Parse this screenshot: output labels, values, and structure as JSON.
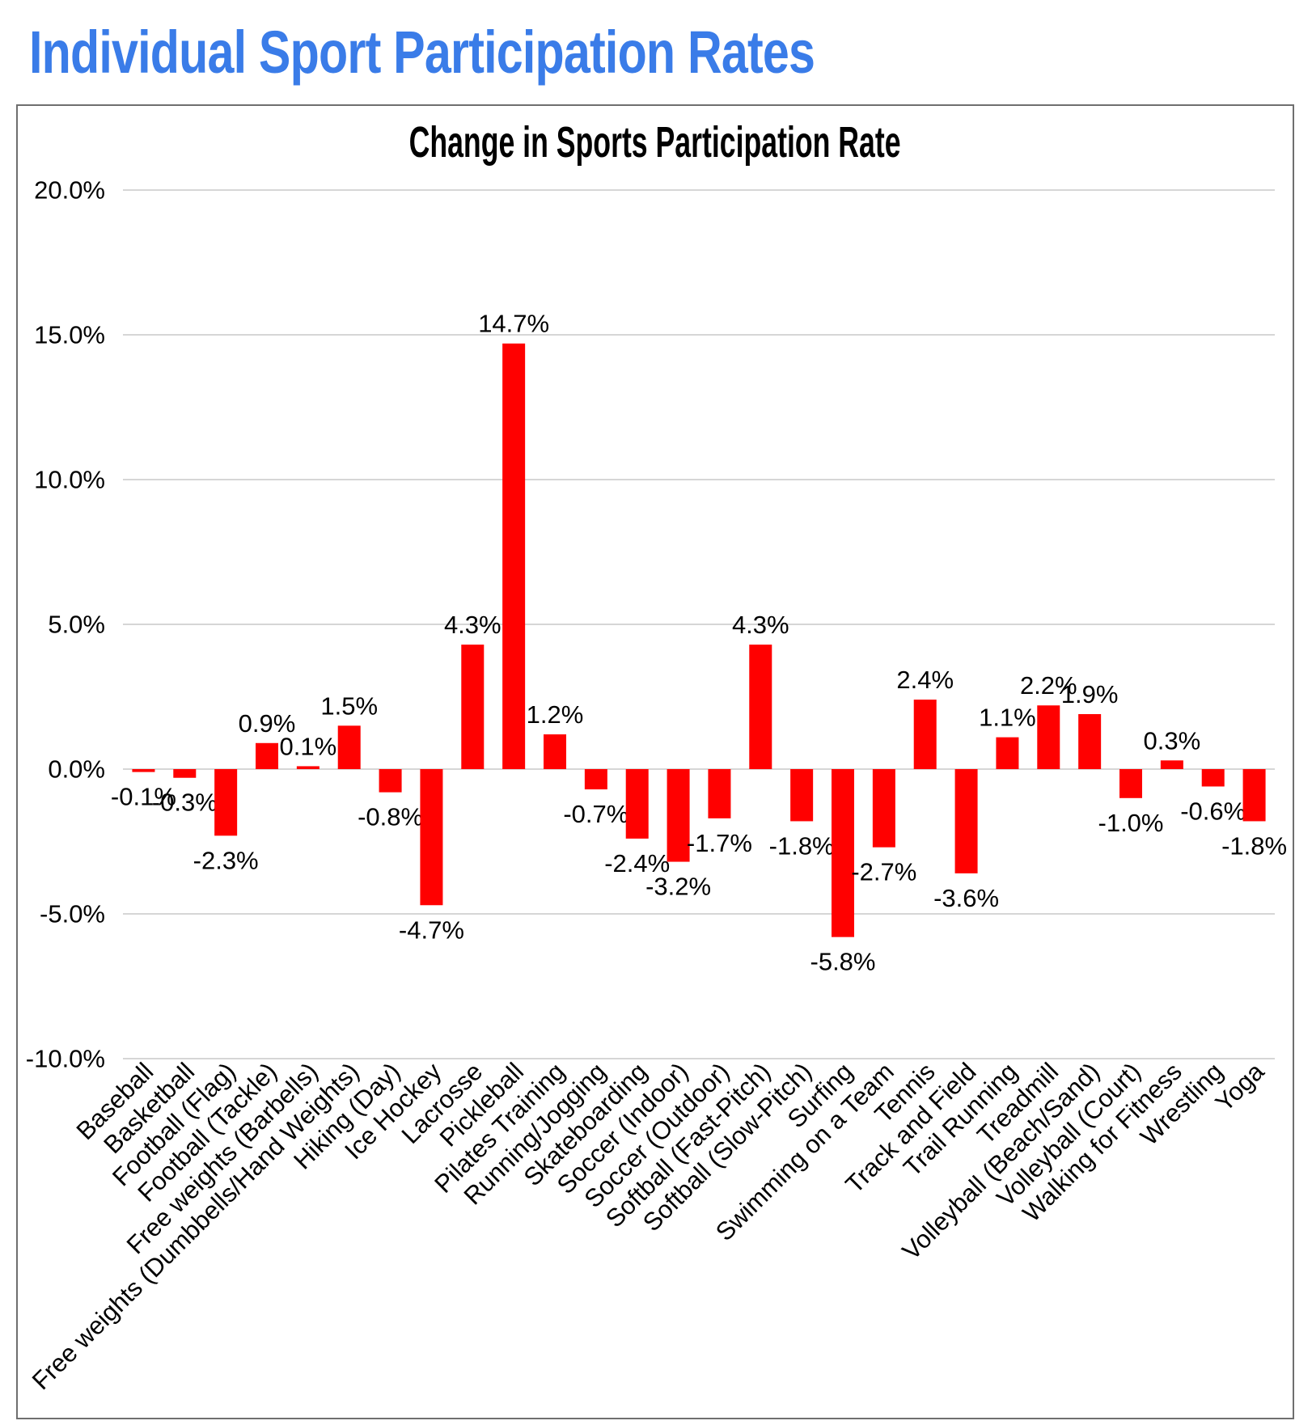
{
  "page": {
    "title": "Individual Sport Participation Rates"
  },
  "chart_data": {
    "type": "bar",
    "title": "Change in Sports Participation Rate",
    "xlabel": "",
    "ylabel": "",
    "categories": [
      "Baseball",
      "Basketball",
      "Football (Flag)",
      "Football (Tackle)",
      "Free weights (Barbells)",
      "Free weights (Dumbbells/Hand Weights)",
      "Hiking (Day)",
      "Ice Hockey",
      "Lacrosse",
      "Pickleball",
      "Pilates Training",
      "Running/Jogging",
      "Skateboarding",
      "Soccer (Indoor)",
      "Soccer (Outdoor)",
      "Softball (Fast-Pitch)",
      "Softball (Slow-Pitch)",
      "Surfing",
      "Swimming on a Team",
      "Tennis",
      "Track and Field",
      "Trail Running",
      "Treadmill",
      "Volleyball (Beach/Sand)",
      "Volleyball (Court)",
      "Walking for Fitness",
      "Wrestling",
      "Yoga"
    ],
    "values": [
      -0.1,
      -0.3,
      -2.3,
      0.9,
      0.1,
      1.5,
      -0.8,
      -4.7,
      4.3,
      14.7,
      1.2,
      -0.7,
      -2.4,
      -3.2,
      -1.7,
      4.3,
      -1.8,
      -5.8,
      -2.7,
      2.4,
      -3.6,
      1.1,
      2.2,
      1.9,
      -1.0,
      0.3,
      -0.6,
      -1.8
    ],
    "value_labels": [
      "-0.1%",
      "-0.3%",
      "-2.3%",
      "0.9%",
      "0.1%",
      "1.5%",
      "-0.8%",
      "-4.7%",
      "4.3%",
      "14.7%",
      "1.2%",
      "-0.7%",
      "-2.4%",
      "-3.2%",
      "-1.7%",
      "4.3%",
      "-1.8%",
      "-5.8%",
      "-2.7%",
      "2.4%",
      "-3.6%",
      "1.1%",
      "2.2%",
      "1.9%",
      "-1.0%",
      "0.3%",
      "-0.6%",
      "-1.8%"
    ],
    "ylim": [
      -10,
      20
    ],
    "ytick_step": 5,
    "ytick_labels": [
      "20.0%",
      "15.0%",
      "10.0%",
      "5.0%",
      "0.0%",
      "-5.0%",
      "-10.0%"
    ],
    "grid": true,
    "legend": null,
    "colors": {
      "bar": "#FF0000",
      "gridline": "#D6D6D6",
      "axis_text": "#000000",
      "value_text": "#000000",
      "chart_title": "#000000",
      "page_title": "#3A7CE8",
      "panel_border": "#6F6F6F"
    }
  }
}
